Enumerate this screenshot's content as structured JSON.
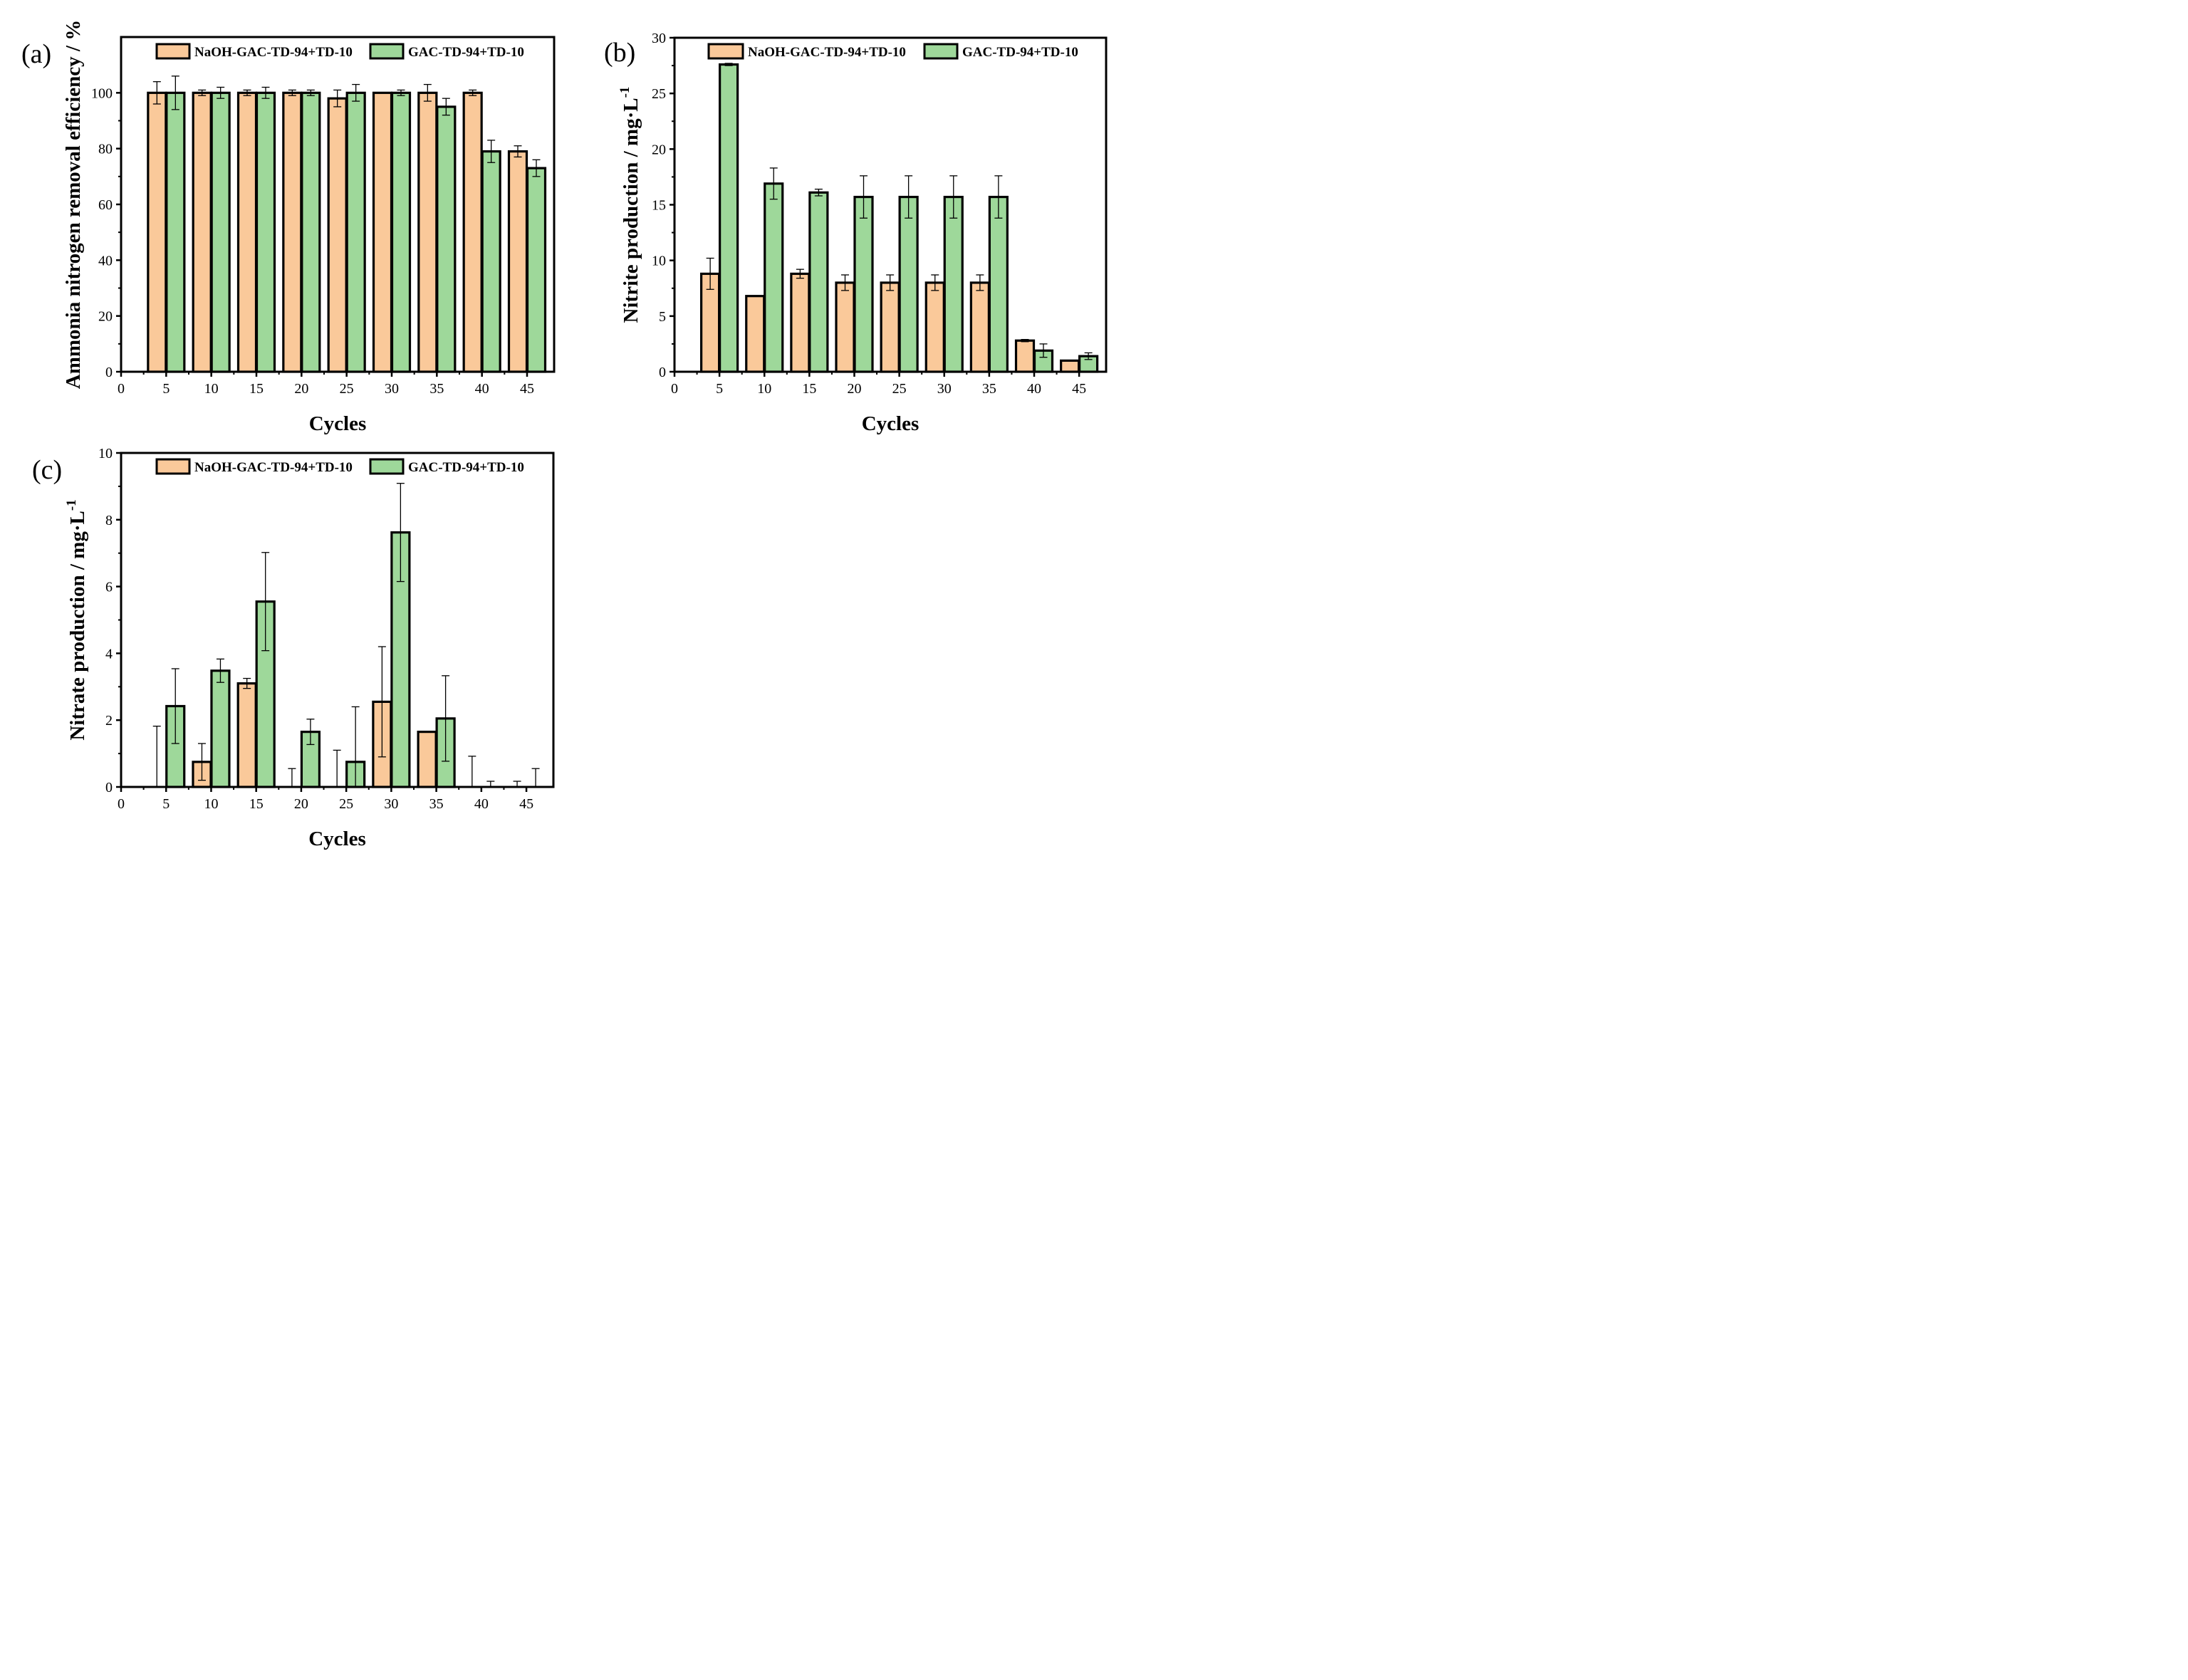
{
  "colors": {
    "naoh_fill": "#FAC99A",
    "gac_fill": "#9ED89A",
    "edge": "#000000",
    "background": "#FFFFFF"
  },
  "chart_data": [
    {
      "panel_label": "(a)",
      "type": "bar",
      "title": "",
      "xlabel": "Cycles",
      "ylabel": "Ammonia nitrogen  removal efficiency / %",
      "ylabel_superscript": "",
      "xlim": [
        0,
        48
      ],
      "ylim": [
        0,
        120
      ],
      "x_ticks": [
        0,
        5,
        10,
        15,
        20,
        25,
        30,
        35,
        40,
        45
      ],
      "y_ticks": [
        0,
        20,
        40,
        60,
        80,
        100
      ],
      "legend_position": "top",
      "categories": [
        5,
        10,
        15,
        20,
        25,
        30,
        35,
        40,
        45
      ],
      "series": [
        {
          "name": "NaOH-GAC-TD-94+TD-10",
          "values": [
            100,
            100,
            100,
            100,
            98,
            100,
            100,
            100,
            79
          ],
          "errors": [
            4,
            1,
            1,
            1,
            3,
            0,
            3,
            1,
            2
          ]
        },
        {
          "name": "GAC-TD-94+TD-10",
          "values": [
            100,
            100,
            100,
            100,
            100,
            100,
            95,
            79,
            73
          ],
          "errors": [
            6,
            2,
            2,
            1,
            3,
            1,
            3,
            4,
            3
          ]
        }
      ]
    },
    {
      "panel_label": "(b)",
      "type": "bar",
      "title": "",
      "xlabel": "Cycles",
      "ylabel": "Nitrite production / mg·L",
      "ylabel_superscript": "-1",
      "xlim": [
        0,
        48
      ],
      "ylim": [
        0,
        30
      ],
      "x_ticks": [
        0,
        5,
        10,
        15,
        20,
        25,
        30,
        35,
        40,
        45
      ],
      "y_ticks": [
        0,
        5,
        10,
        15,
        20,
        25,
        30
      ],
      "legend_position": "top",
      "categories": [
        5,
        10,
        15,
        20,
        25,
        30,
        35,
        40,
        45
      ],
      "series": [
        {
          "name": "NaOH-GAC-TD-94+TD-10",
          "values": [
            8.8,
            6.8,
            8.8,
            8.0,
            8.0,
            8.0,
            8.0,
            2.8,
            1.0
          ],
          "errors": [
            1.4,
            0,
            0.4,
            0.7,
            0.7,
            0.7,
            0.7,
            0.1,
            0
          ]
        },
        {
          "name": "GAC-TD-94+TD-10",
          "values": [
            27.6,
            16.9,
            16.1,
            15.7,
            15.7,
            15.7,
            15.7,
            1.9,
            1.4
          ],
          "errors": [
            0.1,
            1.4,
            0.3,
            1.9,
            1.9,
            1.9,
            1.9,
            0.6,
            0.3
          ]
        }
      ]
    },
    {
      "panel_label": "(c)",
      "type": "bar",
      "title": "",
      "xlabel": "Cycles",
      "ylabel": "Nitrate production / mg·L",
      "ylabel_superscript": "-1",
      "xlim": [
        0,
        48
      ],
      "ylim": [
        0,
        10
      ],
      "x_ticks": [
        0,
        5,
        10,
        15,
        20,
        25,
        30,
        35,
        40,
        45
      ],
      "y_ticks": [
        0,
        2,
        4,
        6,
        8,
        10
      ],
      "legend_position": "top",
      "categories": [
        5,
        10,
        15,
        20,
        25,
        30,
        35,
        40,
        45
      ],
      "series": [
        {
          "name": "NaOH-GAC-TD-94+TD-10",
          "values": [
            0,
            0.75,
            3.1,
            0,
            0,
            2.55,
            1.65,
            0,
            0
          ],
          "errors": [
            1.82,
            0.55,
            0.15,
            0.55,
            1.1,
            1.65,
            0,
            0.92,
            0.17
          ]
        },
        {
          "name": "GAC-TD-94+TD-10",
          "values": [
            2.42,
            3.48,
            5.55,
            1.65,
            0.75,
            7.62,
            2.05,
            0,
            0
          ],
          "errors": [
            1.12,
            0.35,
            1.47,
            0.38,
            1.65,
            1.47,
            1.28,
            0.17,
            0.55
          ]
        }
      ]
    }
  ]
}
